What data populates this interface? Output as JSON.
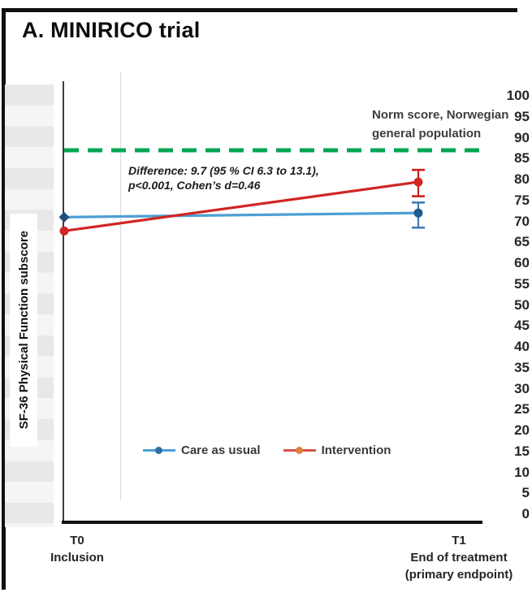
{
  "figure": {
    "title": "A. MINIRICO trial"
  },
  "chart_data": {
    "type": "line",
    "title": "A. MINIRICO trial",
    "ylabel": "SF-36 Physical Function subscore",
    "ylim": [
      0,
      100
    ],
    "ytick_step": 5,
    "grid": "off",
    "legend_position": "bottom-center",
    "categories": [
      "T0",
      "T1"
    ],
    "x_axis_labels": [
      {
        "time": "T0",
        "line1": "Inclusion",
        "line2": ""
      },
      {
        "time": "T1",
        "line1": "End of treatment",
        "line2": "(primary endpoint)"
      }
    ],
    "series": [
      {
        "name": "Care as usual",
        "values": [
          71,
          72
        ],
        "ci_t1": [
          68.5,
          74.5
        ],
        "line_color": "#4E9FD4",
        "marker_color": "#1F4E79",
        "marker_color_t1": "#1F5C8F",
        "error_color": "#3F7CB8",
        "markers": [
          "diamond",
          "circle"
        ],
        "legend_line_color": "#4E9FD4",
        "legend_marker_color": "#2E6DA8"
      },
      {
        "name": "Intervention",
        "values": [
          67.7,
          79.4
        ],
        "ci_t1": [
          76.0,
          82.3
        ],
        "line_color": "#D02624",
        "marker_color": "#D02624",
        "marker_color_t1": "#D02624",
        "error_color": "#C9201D",
        "markers": [
          "circle",
          "circle"
        ],
        "legend_line_color": "#D05348",
        "legend_marker_color": "#DF7E3E"
      }
    ],
    "reference_line": {
      "value": 87,
      "color": "#00A551",
      "style": "dashed",
      "label": "Norm score, Norwegian general population",
      "label_line1": "Norm score, Norwegian",
      "label_line2": "general population"
    },
    "annotation": {
      "line1": "Difference: 9.7 (95 % CI 6.3 to 13.1),",
      "line2": "p<0.001, Cohen’s d=0.46"
    }
  }
}
